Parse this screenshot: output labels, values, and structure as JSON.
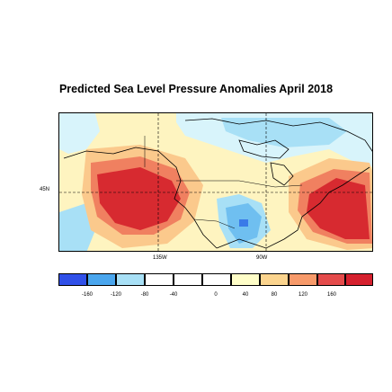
{
  "title": "Predicted Sea Level Pressure Anomalies April 2018",
  "lat_label": "45N",
  "lon_labels": [
    "135W",
    "90W"
  ],
  "legend": {
    "ticks": [
      "-160",
      "-120",
      "-80",
      "-40",
      "0",
      "40",
      "80",
      "120",
      "160"
    ],
    "colors": [
      "#3050e8",
      "#4aa6ee",
      "#a8e0f6",
      "#ffffff",
      "#ffffff",
      "#ffffff",
      "#fffec8",
      "#fbd48e",
      "#f79a6a",
      "#e44b4b",
      "#d5202e"
    ]
  },
  "palette": {
    "strong_high": "#d72a30",
    "high": "#f08060",
    "mid_high": "#fbc98c",
    "weak_high": "#fef4c0",
    "weak_low": "#d8f4fb",
    "low": "#a8e0f6",
    "mid_low": "#6fbff0",
    "strong_low": "#3a7ae8"
  }
}
